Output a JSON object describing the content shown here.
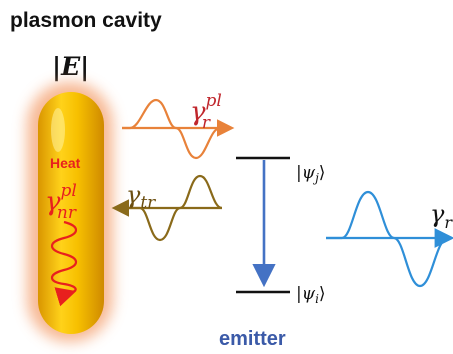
{
  "title": "plasmon cavity",
  "field_label": "|E|",
  "heat_label": "Heat",
  "gamma_nr": {
    "symbol": "γ",
    "sup": "pl",
    "sub": "nr"
  },
  "gamma_r": {
    "symbol": "γ",
    "sup": "pl",
    "sub": "r"
  },
  "gamma_tr": {
    "symbol": "γ",
    "sub": "tr"
  },
  "gamma_right": {
    "symbol": "γ",
    "sub": "r"
  },
  "state_upper": {
    "open": "|ψ",
    "sub": "j",
    "close": "⟩"
  },
  "state_lower": {
    "open": "|ψ",
    "sub": "i",
    "close": "⟩"
  },
  "emitter_label": "emitter",
  "colors": {
    "title": "#111111",
    "rod_fill": "#f5b800",
    "rod_glow": "#f4a070",
    "heat": "#e8201e",
    "gamma_r": "#c0262c",
    "wave_r": "#e8823a",
    "wave_tr": "#8a6a1a",
    "gamma_tr": "#6b4e10",
    "transition": "#4472c4",
    "wave_right": "#2f8fd8",
    "emitter": "#3b5aa8"
  }
}
